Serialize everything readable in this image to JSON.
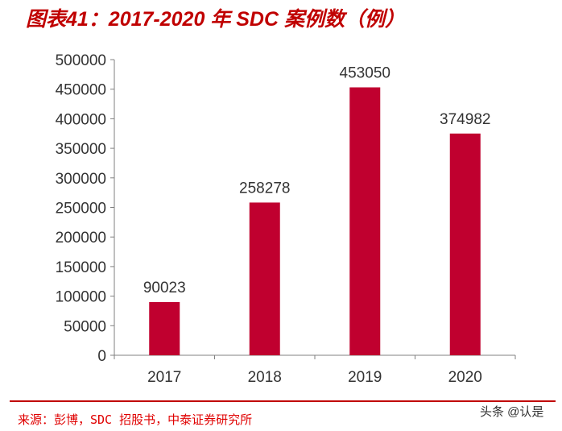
{
  "title": "图表41：2017-2020 年 SDC 案例数（例）",
  "source": "来源：彭博，SDC 招股书，中泰证券研究所",
  "watermark": "头条 @认是",
  "colors": {
    "bar": "#c0002f",
    "title": "#c00000",
    "axis": "#808080"
  },
  "chart_data": {
    "type": "bar",
    "categories": [
      "2017",
      "2018",
      "2019",
      "2020"
    ],
    "values": [
      90023,
      258278,
      453050,
      374982
    ],
    "ylim": [
      0,
      500000
    ],
    "yticks": [
      0,
      50000,
      100000,
      150000,
      200000,
      250000,
      300000,
      350000,
      400000,
      450000,
      500000
    ],
    "grid": false,
    "data_labels": true
  }
}
